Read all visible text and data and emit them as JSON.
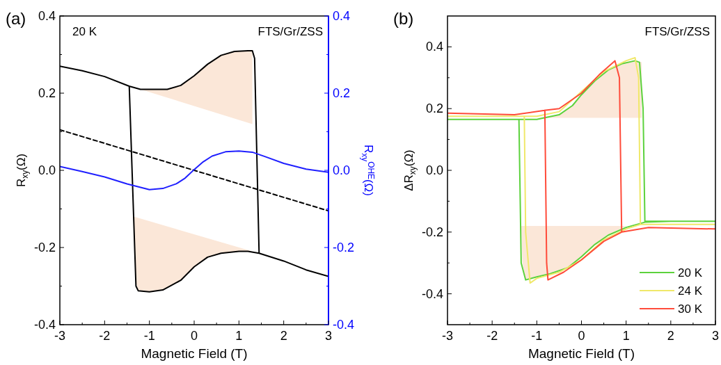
{
  "chart_data": [
    {
      "type": "line",
      "xlabel": "Magnetic Field (T)",
      "ylabel": "R$_{xy}$(Ω)",
      "y2label": "R$_{xy}$$^{OHE}$(Ω)",
      "annotations": [
        "(a)",
        "20 K",
        "FTS/Gr/ZSS"
      ],
      "xlim": [
        -3,
        3
      ],
      "xticks": [
        -3,
        {
          "value": -2.5,
          "label": null
        },
        -2,
        {
          "value": -1.5,
          "label": null
        },
        -1,
        {
          "value": -0.5,
          "label": null
        },
        0,
        {
          "value": 0.5,
          "label": null
        },
        1,
        {
          "value": 1.5,
          "label": null
        },
        2,
        {
          "value": 2.5,
          "label": null
        },
        3
      ],
      "ylim": [
        -0.4,
        0.4
      ],
      "yticks": [
        -0.4,
        {
          "value": -0.3,
          "label": null
        },
        -0.2,
        {
          "value": -0.1,
          "label": null
        },
        {
          "value": 0,
          "label": "0.0"
        },
        {
          "value": 0.1,
          "label": null
        },
        0.2,
        {
          "value": 0.3,
          "label": null
        },
        0.4
      ],
      "y2lim": [
        -0.4,
        0.4
      ],
      "y2ticks": [
        -0.4,
        {
          "value": -0.3,
          "label": null
        },
        -0.2,
        {
          "value": -0.1,
          "label": null
        },
        {
          "value": 0,
          "label": "0.0"
        },
        {
          "value": 0.1,
          "label": null
        },
        0.2,
        {
          "value": 0.3,
          "label": null
        },
        0.4
      ],
      "series": [
        {
          "type": "area",
          "color": "#fbe7d8",
          "x": [
            -1.2,
            -1,
            -0.6,
            -0.3,
            0,
            0.3,
            0.6,
            0.9,
            1.2,
            1.3,
            1.3
          ],
          "values": [
            0.21,
            0.21,
            0.21,
            0.22,
            0.245,
            0.275,
            0.298,
            0.308,
            0.31,
            0.31,
            0.12
          ]
        },
        {
          "type": "area",
          "color": "#fbe7d8",
          "x": [
            -1.35,
            1.3,
            1.0,
            0.6,
            0.3,
            0,
            -0.3,
            -0.7,
            -1,
            -1.25,
            -1.3
          ],
          "values": [
            -0.12,
            -0.21,
            -0.21,
            -0.215,
            -0.225,
            -0.25,
            -0.285,
            -0.31,
            -0.315,
            -0.31,
            -0.29
          ]
        },
        {
          "color": "#000000",
          "x": [
            -3,
            -2.5,
            -2,
            -1.45,
            -1.2,
            -1,
            -0.6,
            -0.3,
            0,
            0.3,
            0.6,
            0.9,
            1.2,
            1.3,
            1.35,
            1.45,
            2,
            2.5,
            3,
            2.5,
            2,
            1.45,
            1.2,
            1,
            0.6,
            0.3,
            0,
            -0.3,
            -0.7,
            -1,
            -1.25,
            -1.3,
            -1.45
          ],
          "values": [
            0.27,
            0.258,
            0.243,
            0.218,
            0.21,
            0.21,
            0.21,
            0.22,
            0.245,
            0.275,
            0.298,
            0.308,
            0.31,
            0.31,
            0.29,
            -0.215,
            -0.235,
            -0.258,
            -0.275,
            -0.258,
            -0.235,
            -0.215,
            -0.21,
            -0.21,
            -0.215,
            -0.225,
            -0.25,
            -0.285,
            -0.31,
            -0.315,
            -0.312,
            -0.3,
            0.218
          ]
        },
        {
          "color": "#000000",
          "line_style": "dashed",
          "x": [
            -3,
            3
          ],
          "values": [
            0.105,
            -0.105
          ]
        },
        {
          "color": "#1f1fff",
          "axis": "y2",
          "x": [
            -3,
            -2.5,
            -2,
            -1.5,
            -1,
            -0.7,
            -0.4,
            -0.2,
            0,
            0.2,
            0.4,
            0.7,
            1,
            1.3,
            1.6,
            2,
            2.5,
            3
          ],
          "values": [
            0.01,
            -0.003,
            -0.017,
            -0.035,
            -0.05,
            -0.047,
            -0.035,
            -0.02,
            0.002,
            0.022,
            0.037,
            0.048,
            0.05,
            0.047,
            0.035,
            0.018,
            0.003,
            -0.005
          ]
        }
      ]
    },
    {
      "type": "line",
      "xlabel": "Magnetic Field (T)",
      "ylabel": "ΔR$_{xy}$(Ω)",
      "annotations": [
        "(b)",
        "FTS/Gr/ZSS"
      ],
      "legend": "bottom right",
      "xlim": [
        -3,
        3
      ],
      "xticks": [
        -3,
        {
          "value": -2.5,
          "label": null
        },
        -2,
        {
          "value": -1.5,
          "label": null
        },
        -1,
        {
          "value": -0.5,
          "label": null
        },
        0,
        {
          "value": 0.5,
          "label": null
        },
        1,
        {
          "value": 1.5,
          "label": null
        },
        2,
        {
          "value": 2.5,
          "label": null
        },
        3
      ],
      "ylim": [
        -0.5,
        0.5
      ],
      "yticks": [
        -0.4,
        {
          "value": -0.3,
          "label": null
        },
        -0.2,
        {
          "value": -0.1,
          "label": null
        },
        {
          "value": 0,
          "label": "0.0"
        },
        {
          "value": 0.1,
          "label": null
        },
        0.2,
        {
          "value": 0.3,
          "label": null
        },
        0.4
      ],
      "series": [
        {
          "type": "area",
          "color": "#fbe7d8",
          "x": [
            -1.3,
            -1,
            -0.5,
            -0.2,
            0,
            0.3,
            0.6,
            0.9,
            1.2,
            1.35,
            1.35
          ],
          "values": [
            0.17,
            0.17,
            0.18,
            0.21,
            0.245,
            0.29,
            0.325,
            0.345,
            0.355,
            0.35,
            0.17
          ]
        },
        {
          "type": "area",
          "color": "#fbe7d8",
          "x": [
            -1.35,
            1.0,
            0.6,
            0.3,
            0,
            -0.3,
            -0.7,
            -1,
            -1.25,
            -1.32
          ],
          "values": [
            -0.18,
            -0.18,
            -0.21,
            -0.24,
            -0.28,
            -0.315,
            -0.335,
            -0.345,
            -0.355,
            -0.3
          ]
        },
        {
          "name": "20 K",
          "color": "#5cd23c",
          "x": [
            -3,
            -2,
            -1,
            -0.5,
            -0.2,
            0,
            0.3,
            0.6,
            0.9,
            1.2,
            1.3,
            1.38,
            1.42,
            2,
            3,
            2,
            1.42,
            1,
            0.6,
            0.3,
            0,
            -0.3,
            -0.7,
            -1,
            -1.25,
            -1.35,
            -1.4
          ],
          "values": [
            0.165,
            0.165,
            0.165,
            0.18,
            0.21,
            0.245,
            0.29,
            0.325,
            0.345,
            0.355,
            0.35,
            0.2,
            -0.165,
            -0.165,
            -0.165,
            -0.165,
            -0.168,
            -0.185,
            -0.21,
            -0.24,
            -0.28,
            -0.315,
            -0.335,
            -0.345,
            -0.355,
            -0.3,
            0.165
          ]
        },
        {
          "name": "24 K",
          "color": "#f0e86a",
          "x": [
            -3,
            -1,
            -0.5,
            0,
            0.5,
            1,
            1.2,
            1.28,
            1.32,
            2,
            3,
            2,
            1.32,
            1,
            0.5,
            0,
            -0.5,
            -1,
            -1.15,
            -1.25,
            -1.28
          ],
          "values": [
            0.175,
            0.175,
            0.19,
            0.255,
            0.32,
            0.355,
            0.365,
            0.3,
            -0.175,
            -0.175,
            -0.175,
            -0.175,
            -0.175,
            -0.19,
            -0.225,
            -0.29,
            -0.33,
            -0.35,
            -0.365,
            -0.2,
            0.175
          ]
        },
        {
          "name": "30 K",
          "color": "#ff4b3a",
          "x": [
            -3,
            -1.5,
            -0.8,
            -0.5,
            0,
            0.4,
            0.75,
            0.85,
            0.9,
            1.5,
            3,
            1.5,
            0.9,
            0.5,
            0,
            -0.4,
            -0.75,
            -0.78,
            -0.82
          ],
          "values": [
            0.185,
            0.18,
            0.195,
            0.2,
            0.25,
            0.31,
            0.355,
            0.3,
            -0.2,
            -0.185,
            -0.19,
            -0.185,
            -0.2,
            -0.23,
            -0.29,
            -0.33,
            -0.355,
            -0.3,
            0.195
          ]
        }
      ]
    }
  ]
}
